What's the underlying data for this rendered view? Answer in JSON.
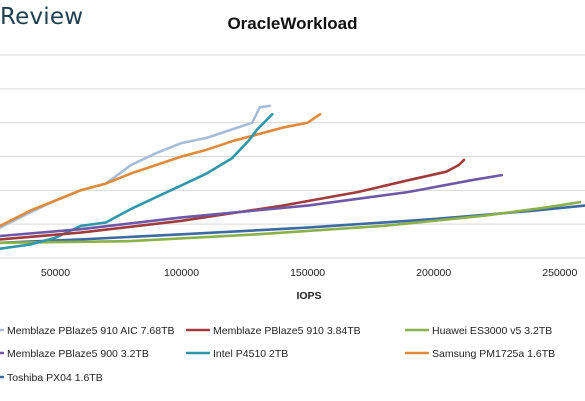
{
  "header": {
    "brand": "Review"
  },
  "chart_data": {
    "type": "line",
    "title": "OracleWorkload",
    "xlabel": "IOPS",
    "ylabel": "",
    "xticks": [
      50000,
      100000,
      150000,
      200000,
      250000
    ],
    "xlim": [
      28000,
      260000
    ],
    "ylim": [
      0,
      12
    ],
    "grid": true,
    "legend_position": "bottom",
    "series": [
      {
        "name": "Memblaze PBlaze5 910 AIC 7.68TB",
        "color": "#a7bcd9",
        "x": [
          28000,
          40000,
          50000,
          60000,
          70000,
          80000,
          90000,
          100000,
          110000,
          120000,
          128000,
          131000,
          135000
        ],
        "y": [
          1.8,
          2.7,
          3.4,
          4.0,
          4.4,
          5.5,
          6.2,
          6.8,
          7.1,
          7.6,
          8.0,
          8.9,
          9.0
        ]
      },
      {
        "name": "Memblaze PBlaze5 910 3.84TB",
        "color": "#a23b3b",
        "x": [
          28000,
          60000,
          100000,
          140000,
          170000,
          190000,
          205000,
          210000,
          212000
        ],
        "y": [
          1.1,
          1.5,
          2.2,
          3.1,
          3.9,
          4.6,
          5.1,
          5.5,
          5.8
        ]
      },
      {
        "name": "Huawei ES3000 v5 3.2TB",
        "color": "#8bb14a",
        "x": [
          28000,
          80000,
          130000,
          180000,
          220000,
          245000,
          258000
        ],
        "y": [
          0.9,
          1.0,
          1.4,
          1.9,
          2.5,
          3.0,
          3.3
        ]
      },
      {
        "name": "Memblaze PBlaze5 900 3.2TB",
        "color": "#6e58a8",
        "x": [
          28000,
          60000,
          100000,
          150000,
          190000,
          215000,
          227000
        ],
        "y": [
          1.3,
          1.7,
          2.4,
          3.1,
          3.9,
          4.6,
          4.9
        ]
      },
      {
        "name": "Intel P4510 2TB",
        "color": "#2f97a8",
        "x": [
          28000,
          40000,
          50000,
          60000,
          70000,
          80000,
          90000,
          100000,
          110000,
          120000,
          127000,
          130000,
          134000,
          136000
        ],
        "y": [
          0.55,
          0.8,
          1.2,
          1.9,
          2.1,
          2.9,
          3.6,
          4.3,
          5.0,
          5.9,
          7.0,
          7.6,
          8.2,
          8.5
        ]
      },
      {
        "name": "Samsung PM1725a 1.6TB",
        "color": "#e08a3c",
        "x": [
          28000,
          40000,
          50000,
          60000,
          70000,
          80000,
          90000,
          100000,
          110000,
          120000,
          130000,
          140000,
          150000,
          155000
        ],
        "y": [
          1.9,
          2.8,
          3.4,
          4.0,
          4.4,
          5.0,
          5.5,
          6.0,
          6.4,
          6.9,
          7.3,
          7.7,
          8.0,
          8.5
        ]
      },
      {
        "name": "Toshiba PX04 1.6TB",
        "color": "#3d6aa3",
        "x": [
          28000,
          60000,
          100000,
          150000,
          200000,
          240000,
          260000
        ],
        "y": [
          0.9,
          1.1,
          1.4,
          1.8,
          2.3,
          2.8,
          3.1
        ]
      }
    ]
  }
}
